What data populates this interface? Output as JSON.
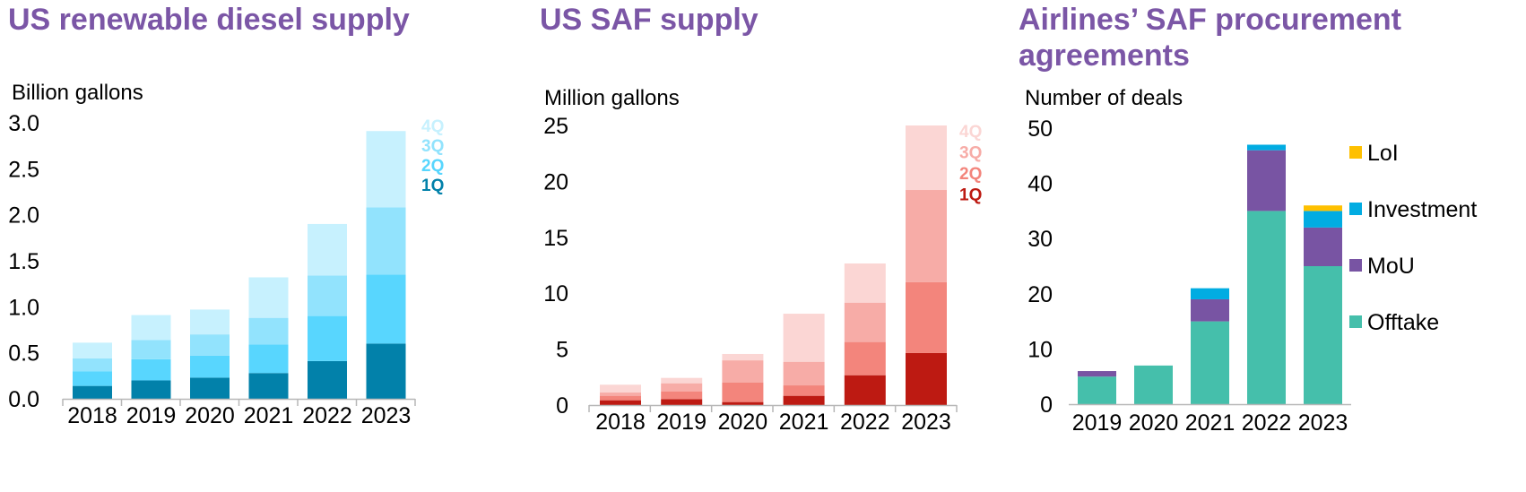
{
  "chart_data": [
    {
      "id": "rd",
      "type": "bar",
      "stacked": true,
      "title": "US renewable diesel supply",
      "ylabel": "Billion gallons",
      "xlabel": "",
      "categories": [
        "2018",
        "2019",
        "2020",
        "2021",
        "2022",
        "2023"
      ],
      "ylim": [
        0,
        3.0
      ],
      "yticks": [
        "0.0",
        "0.5",
        "1.0",
        "1.5",
        "2.0",
        "2.5",
        "3.0"
      ],
      "ytick_values": [
        0,
        0.5,
        1.0,
        1.5,
        2.0,
        2.5,
        3.0
      ],
      "grid": false,
      "legend_position": "top-right (inline labels)",
      "series": [
        {
          "name": "1Q",
          "color": "#0281AA",
          "values": [
            0.14,
            0.2,
            0.23,
            0.28,
            0.41,
            0.6
          ]
        },
        {
          "name": "2Q",
          "color": "#58D6FE",
          "values": [
            0.16,
            0.23,
            0.24,
            0.31,
            0.49,
            0.75
          ]
        },
        {
          "name": "3Q",
          "color": "#92E3FD",
          "values": [
            0.14,
            0.21,
            0.23,
            0.29,
            0.44,
            0.73
          ]
        },
        {
          "name": "4Q",
          "color": "#C7F1FE",
          "values": [
            0.17,
            0.27,
            0.27,
            0.44,
            0.56,
            0.83
          ]
        }
      ]
    },
    {
      "id": "saf",
      "type": "bar",
      "stacked": true,
      "title": "US SAF supply",
      "ylabel": "Million gallons",
      "xlabel": "",
      "categories": [
        "2018",
        "2019",
        "2020",
        "2021",
        "2022",
        "2023"
      ],
      "ylim": [
        0,
        25
      ],
      "yticks": [
        "0",
        "5",
        "10",
        "15",
        "20",
        "25"
      ],
      "ytick_values": [
        0,
        5,
        10,
        15,
        20,
        25
      ],
      "grid": false,
      "legend_position": "top-right (inline labels)",
      "series": [
        {
          "name": "1Q",
          "color": "#BD1A12",
          "values": [
            0.43,
            0.53,
            0.27,
            0.83,
            2.67,
            4.65
          ]
        },
        {
          "name": "2Q",
          "color": "#F3857C",
          "values": [
            0.4,
            0.7,
            1.76,
            0.93,
            2.97,
            6.35
          ]
        },
        {
          "name": "3Q",
          "color": "#F7ACA7",
          "values": [
            0.29,
            0.72,
            1.97,
            2.11,
            3.52,
            8.23
          ]
        },
        {
          "name": "4Q",
          "color": "#FBD6D4",
          "values": [
            0.7,
            0.48,
            0.57,
            4.3,
            3.5,
            5.77
          ]
        }
      ]
    },
    {
      "id": "deals",
      "type": "bar",
      "stacked": true,
      "title": "Airlines’ SAF procurement agreements",
      "ylabel": "Number of deals",
      "xlabel": "",
      "categories": [
        "2019",
        "2020",
        "2021",
        "2022",
        "2023"
      ],
      "ylim": [
        0,
        50
      ],
      "yticks": [
        "0",
        "10",
        "20",
        "30",
        "40",
        "50"
      ],
      "ytick_values": [
        0,
        10,
        20,
        30,
        40,
        50
      ],
      "grid": false,
      "legend_position": "right",
      "series": [
        {
          "name": "Offtake",
          "color": "#45BFAB",
          "values": [
            5,
            7,
            15,
            35,
            25
          ]
        },
        {
          "name": "MoU",
          "color": "#7854A3",
          "values": [
            1,
            0,
            4,
            11,
            7
          ]
        },
        {
          "name": "Investment",
          "color": "#01ACE2",
          "values": [
            0,
            0,
            2,
            1,
            3
          ]
        },
        {
          "name": "LoI",
          "color": "#FEC000",
          "values": [
            0,
            0,
            0,
            0,
            1
          ]
        }
      ]
    }
  ]
}
